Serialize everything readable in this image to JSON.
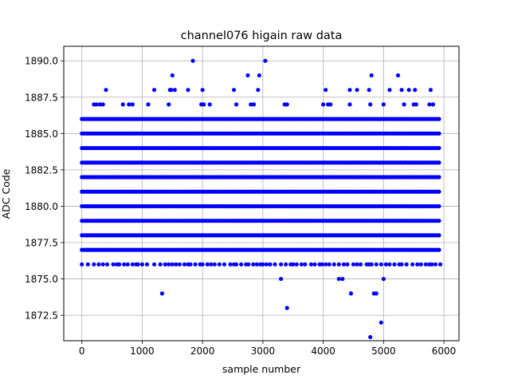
{
  "chart_data": {
    "type": "scatter",
    "title": "channel076 higain raw data",
    "xlabel": "sample number",
    "ylabel": "ADC Code",
    "xlim": [
      -300,
      6250
    ],
    "ylim": [
      1870.75,
      1891
    ],
    "xticks": [
      0,
      1000,
      2000,
      3000,
      4000,
      5000,
      6000
    ],
    "xtick_labels": [
      "0",
      "1000",
      "2000",
      "3000",
      "4000",
      "5000",
      "6000"
    ],
    "yticks": [
      1872.5,
      1875.0,
      1877.5,
      1880.0,
      1882.5,
      1885.0,
      1887.5,
      1890.0
    ],
    "ytick_labels": [
      "1872.5",
      "1875.0",
      "1877.5",
      "1880.0",
      "1882.5",
      "1885.0",
      "1887.5",
      "1890.0"
    ],
    "grid": true,
    "series": [
      {
        "marker": "dot",
        "color": "#0000ff",
        "x_range": [
          0,
          5950
        ],
        "dense_levels": [
          1877,
          1878,
          1879,
          1880,
          1881,
          1882,
          1883,
          1884,
          1885,
          1886
        ],
        "sparse_levels": [
          {
            "y": 1876,
            "x": [
              0,
              100,
              200,
              280,
              350,
              420,
              520,
              580,
              620,
              700,
              760,
              840,
              900,
              930,
              1000,
              1080,
              1200,
              1300,
              1380,
              1440,
              1500,
              1560,
              1620,
              1700,
              1760,
              1800,
              1880,
              1960,
              2000,
              2080,
              2140,
              2200,
              2280,
              2360,
              2460,
              2520,
              2560,
              2640,
              2720,
              2760,
              2840,
              2900,
              2960,
              3000,
              3060,
              3120,
              3200,
              3300,
              3380,
              3460,
              3500,
              3560,
              3640,
              3700,
              3800,
              3860,
              3940,
              3980,
              4040,
              4100,
              4180,
              4260,
              4340,
              4400,
              4500,
              4560,
              4620,
              4720,
              4760,
              4800,
              4880,
              4960,
              5040,
              5100,
              5180,
              5260,
              5300,
              5380,
              5480,
              5560,
              5620,
              5700,
              5760,
              5800,
              5860,
              5940
            ]
          },
          {
            "y": 1887,
            "x": [
              200,
              240,
              300,
              350,
              680,
              780,
              840,
              1100,
              1440,
              1980,
              2020,
              2120,
              2560,
              2800,
              2850,
              3360,
              3400,
              4000,
              4080,
              4120,
              4440,
              4780,
              5000,
              5340,
              5500,
              5540,
              5760,
              5820
            ]
          },
          {
            "y": 1888,
            "x": [
              400,
              1200,
              1460,
              1480,
              1540,
              1760,
              2000,
              2520,
              2920,
              4040,
              4440,
              4560,
              4760,
              5100,
              5300,
              5420,
              5520,
              5780
            ]
          },
          {
            "y": 1889,
            "x": [
              1500,
              2750,
              2940,
              4800,
              5240
            ]
          },
          {
            "y": 1890,
            "x": [
              1840,
              3040
            ]
          },
          {
            "y": 1875,
            "x": [
              3300,
              4260,
              4320,
              5000
            ]
          },
          {
            "y": 1874,
            "x": [
              1330,
              4460,
              4840,
              4880
            ]
          },
          {
            "y": 1873,
            "x": [
              3400
            ]
          },
          {
            "y": 1872,
            "x": [
              4960
            ]
          },
          {
            "y": 1871,
            "x": [
              4780
            ]
          }
        ]
      }
    ]
  }
}
